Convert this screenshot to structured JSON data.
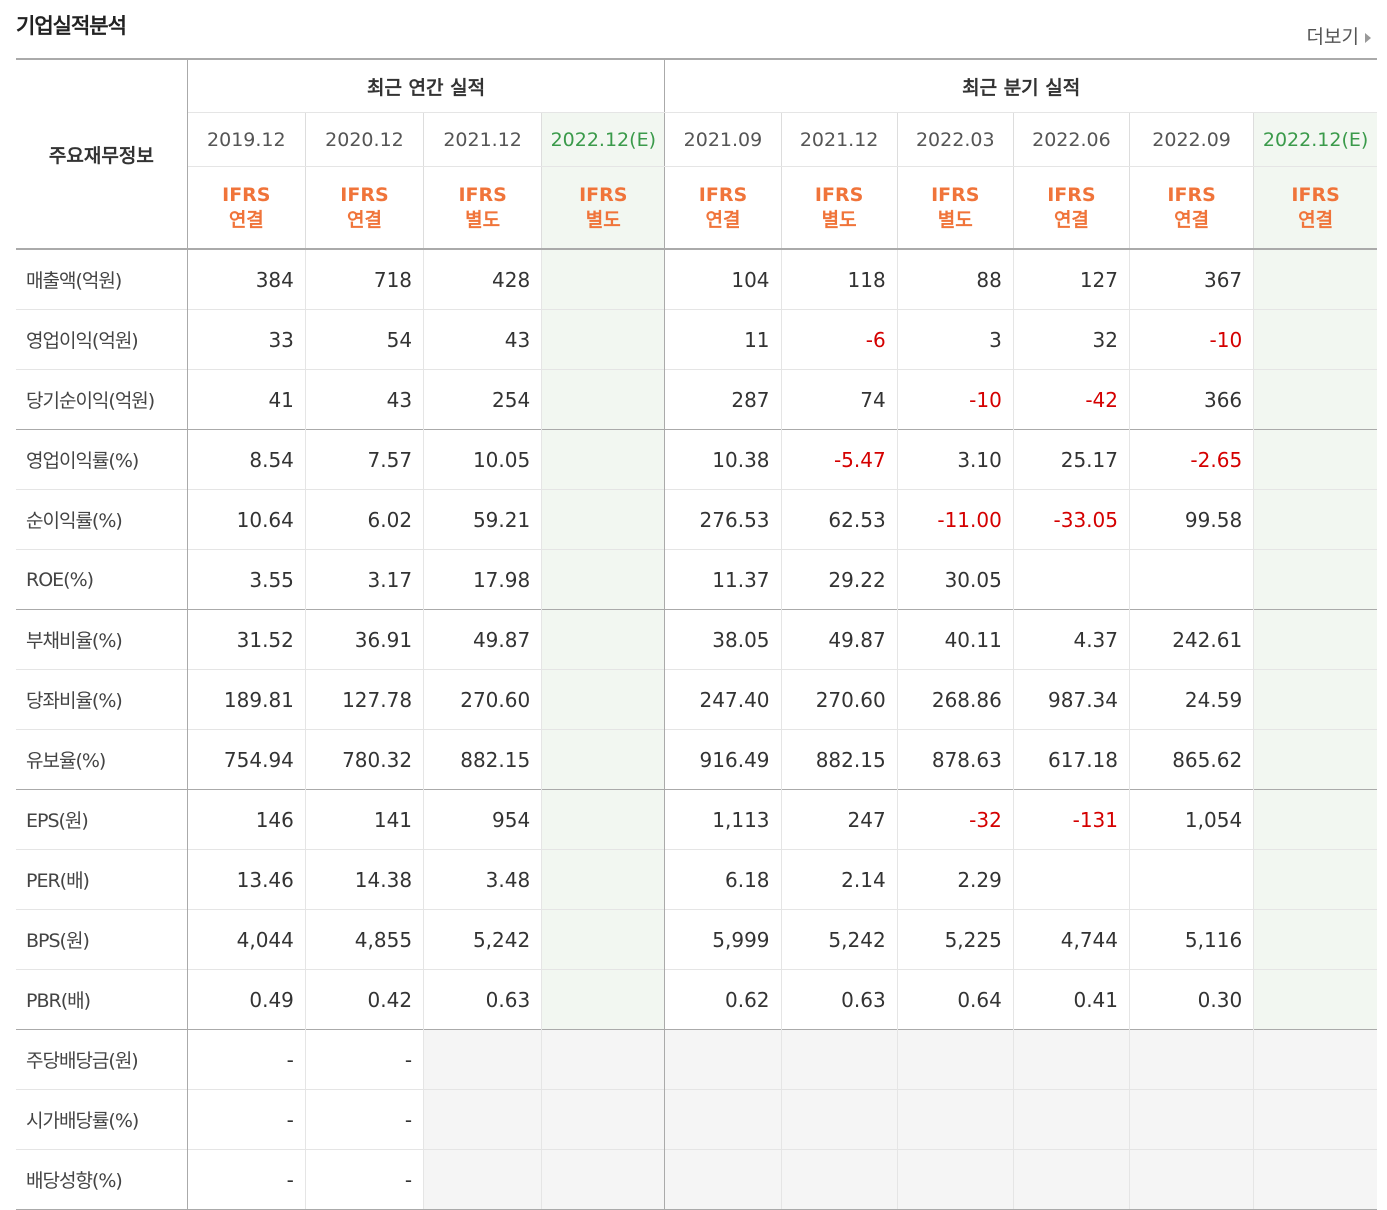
{
  "title": "기업실적분석",
  "more_label": "더보기",
  "header": {
    "row_label": "주요재무정보",
    "annual_group": "최근 연간 실적",
    "quarter_group": "최근 분기 실적",
    "periods": [
      {
        "date": "2019.12",
        "est": "",
        "std": "IFRS",
        "kind": "연결"
      },
      {
        "date": "2020.12",
        "est": "",
        "std": "IFRS",
        "kind": "연결"
      },
      {
        "date": "2021.12",
        "est": "",
        "std": "IFRS",
        "kind": "별도"
      },
      {
        "date": "2022.12",
        "est": "(E)",
        "std": "IFRS",
        "kind": "별도"
      },
      {
        "date": "2021.09",
        "est": "",
        "std": "IFRS",
        "kind": "연결"
      },
      {
        "date": "2021.12",
        "est": "",
        "std": "IFRS",
        "kind": "별도"
      },
      {
        "date": "2022.03",
        "est": "",
        "std": "IFRS",
        "kind": "별도"
      },
      {
        "date": "2022.06",
        "est": "",
        "std": "IFRS",
        "kind": "연결"
      },
      {
        "date": "2022.09",
        "est": "",
        "std": "IFRS",
        "kind": "연결"
      },
      {
        "date": "2022.12",
        "est": "(E)",
        "std": "IFRS",
        "kind": "연결"
      }
    ]
  },
  "rows": [
    {
      "label": "매출액(억원)",
      "values": [
        "384",
        "718",
        "428",
        "",
        "104",
        "118",
        "88",
        "127",
        "367",
        ""
      ]
    },
    {
      "label": "영업이익(억원)",
      "values": [
        "33",
        "54",
        "43",
        "",
        "11",
        "-6",
        "3",
        "32",
        "-10",
        ""
      ]
    },
    {
      "label": "당기순이익(억원)",
      "values": [
        "41",
        "43",
        "254",
        "",
        "287",
        "74",
        "-10",
        "-42",
        "366",
        ""
      ]
    },
    {
      "label": "영업이익률(%)",
      "values": [
        "8.54",
        "7.57",
        "10.05",
        "",
        "10.38",
        "-5.47",
        "3.10",
        "25.17",
        "-2.65",
        ""
      ]
    },
    {
      "label": "순이익률(%)",
      "values": [
        "10.64",
        "6.02",
        "59.21",
        "",
        "276.53",
        "62.53",
        "-11.00",
        "-33.05",
        "99.58",
        ""
      ]
    },
    {
      "label": "ROE(%)",
      "values": [
        "3.55",
        "3.17",
        "17.98",
        "",
        "11.37",
        "29.22",
        "30.05",
        "",
        "",
        ""
      ]
    },
    {
      "label": "부채비율(%)",
      "values": [
        "31.52",
        "36.91",
        "49.87",
        "",
        "38.05",
        "49.87",
        "40.11",
        "4.37",
        "242.61",
        ""
      ]
    },
    {
      "label": "당좌비율(%)",
      "values": [
        "189.81",
        "127.78",
        "270.60",
        "",
        "247.40",
        "270.60",
        "268.86",
        "987.34",
        "24.59",
        ""
      ]
    },
    {
      "label": "유보율(%)",
      "values": [
        "754.94",
        "780.32",
        "882.15",
        "",
        "916.49",
        "882.15",
        "878.63",
        "617.18",
        "865.62",
        ""
      ]
    },
    {
      "label": "EPS(원)",
      "values": [
        "146",
        "141",
        "954",
        "",
        "1,113",
        "247",
        "-32",
        "-131",
        "1,054",
        ""
      ]
    },
    {
      "label": "PER(배)",
      "values": [
        "13.46",
        "14.38",
        "3.48",
        "",
        "6.18",
        "2.14",
        "2.29",
        "",
        "",
        ""
      ]
    },
    {
      "label": "BPS(원)",
      "values": [
        "4,044",
        "4,855",
        "5,242",
        "",
        "5,999",
        "5,242",
        "5,225",
        "4,744",
        "5,116",
        ""
      ]
    },
    {
      "label": "PBR(배)",
      "values": [
        "0.49",
        "0.42",
        "0.63",
        "",
        "0.62",
        "0.63",
        "0.64",
        "0.41",
        "0.30",
        ""
      ]
    },
    {
      "label": "주당배당금(원)",
      "values": [
        "-",
        "-",
        "",
        "",
        "",
        "",
        "",
        "",
        "",
        ""
      ]
    },
    {
      "label": "시가배당률(%)",
      "values": [
        "-",
        "-",
        "",
        "",
        "",
        "",
        "",
        "",
        "",
        ""
      ]
    },
    {
      "label": "배당성향(%)",
      "values": [
        "-",
        "-",
        "",
        "",
        "",
        "",
        "",
        "",
        "",
        ""
      ]
    }
  ],
  "colors": {
    "negative": "#d40000",
    "ifrs": "#f0743a",
    "estimate": "#3a9a4a"
  }
}
